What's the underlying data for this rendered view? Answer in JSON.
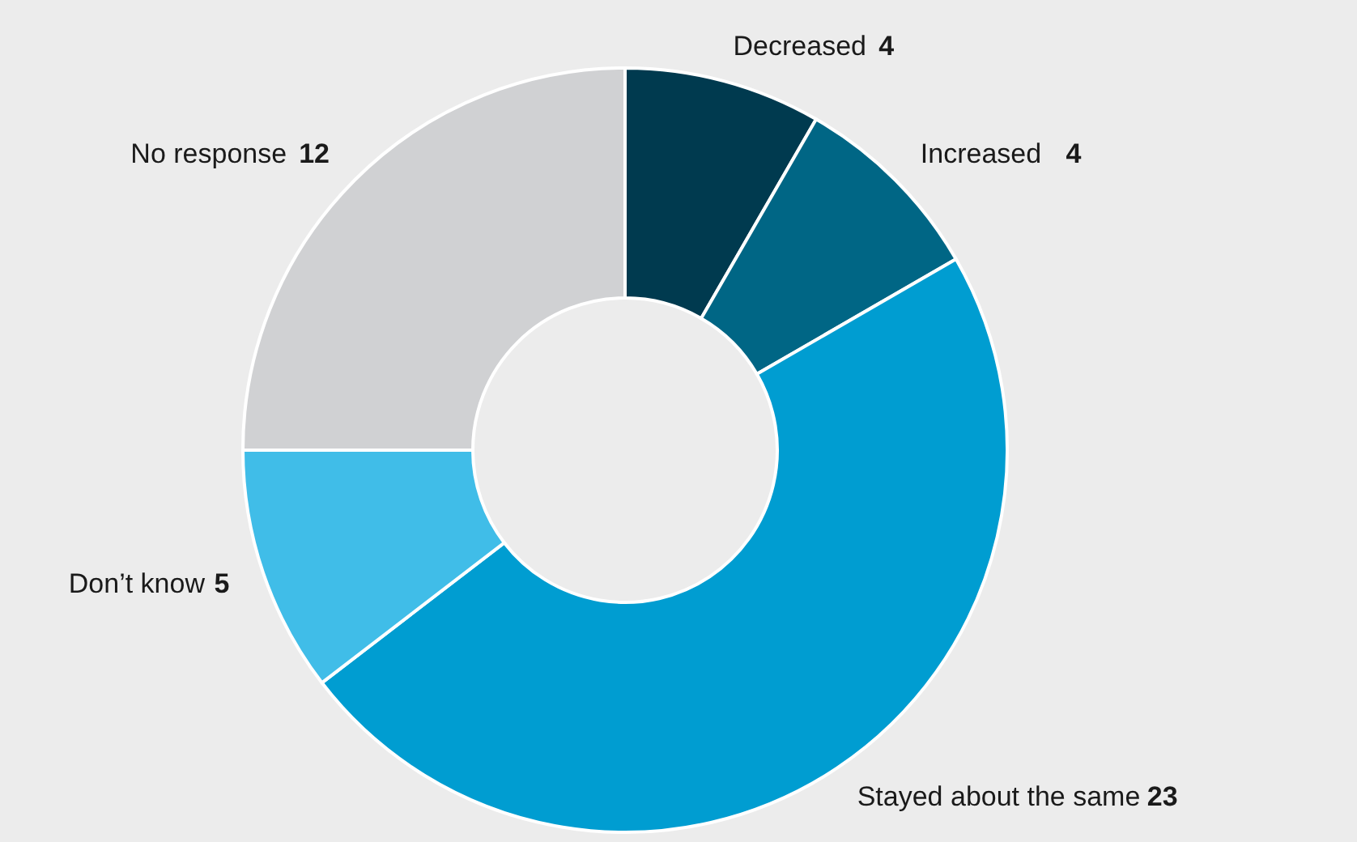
{
  "chart_data": {
    "type": "donut",
    "categories": [
      "Decreased",
      "Increased",
      "Stayed about the same",
      "Don’t know",
      "No response"
    ],
    "values": [
      4,
      4,
      23,
      5,
      12
    ],
    "colors": [
      "#003a4f",
      "#006685",
      "#009dd1",
      "#40bde8",
      "#d0d1d3"
    ],
    "data_labels": true
  }
}
